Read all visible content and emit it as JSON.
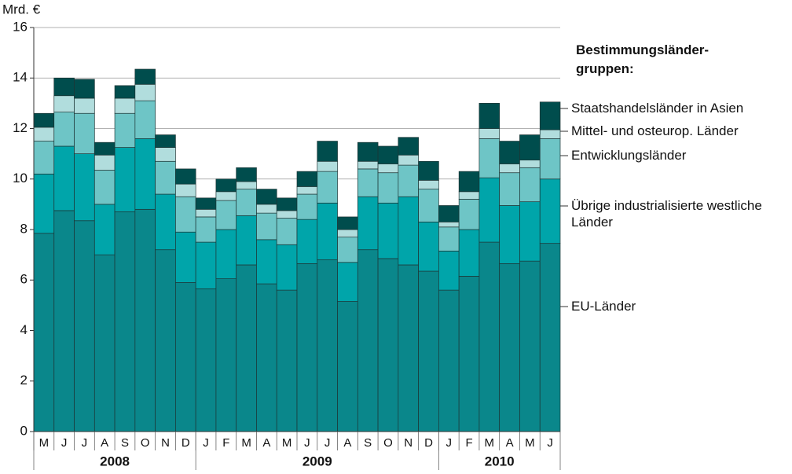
{
  "chart_data": {
    "type": "stacked_bar",
    "y_label": "Mrd. €",
    "legend_title": "Bestimmungsländer-gruppen:",
    "category_groups": [
      {
        "label": "2008",
        "categories": [
          "M",
          "J",
          "J",
          "A",
          "S",
          "O",
          "N",
          "D"
        ]
      },
      {
        "label": "2009",
        "categories": [
          "J",
          "F",
          "M",
          "A",
          "M",
          "J",
          "J",
          "A",
          "S",
          "O",
          "N",
          "D"
        ]
      },
      {
        "label": "2010",
        "categories": [
          "J",
          "F",
          "M",
          "A",
          "M",
          "J"
        ]
      }
    ],
    "series": [
      {
        "name": "EU-Länder",
        "color": "#0a878b",
        "values": [
          7.85,
          8.75,
          8.35,
          7.0,
          8.7,
          8.8,
          7.2,
          5.9,
          5.65,
          6.05,
          6.6,
          5.85,
          5.6,
          6.65,
          6.8,
          5.15,
          7.2,
          6.85,
          6.6,
          6.35,
          5.6,
          6.15,
          7.5,
          6.65,
          6.75,
          7.45
        ]
      },
      {
        "name": "Übrige industrialisierte westliche Länder",
        "color": "#00a5aa",
        "values": [
          2.35,
          2.55,
          2.65,
          2.0,
          2.55,
          2.8,
          2.2,
          2.0,
          1.85,
          1.95,
          1.95,
          1.75,
          1.8,
          1.75,
          2.25,
          1.55,
          2.1,
          2.2,
          2.7,
          1.95,
          1.55,
          1.85,
          2.55,
          2.3,
          2.35,
          2.55
        ]
      },
      {
        "name": "Entwicklungsländer",
        "color": "#6ec5c6",
        "values": [
          1.3,
          1.35,
          1.6,
          1.35,
          1.35,
          1.5,
          1.3,
          1.4,
          1.0,
          1.15,
          1.05,
          1.05,
          1.05,
          1.0,
          1.25,
          1.0,
          1.1,
          1.2,
          1.25,
          1.3,
          0.95,
          1.2,
          1.55,
          1.3,
          1.35,
          1.6
        ]
      },
      {
        "name": "Mittel- und osteurop. Länder",
        "color": "#b1dddd",
        "values": [
          0.55,
          0.65,
          0.6,
          0.6,
          0.6,
          0.65,
          0.55,
          0.5,
          0.3,
          0.35,
          0.3,
          0.35,
          0.3,
          0.3,
          0.4,
          0.3,
          0.3,
          0.35,
          0.4,
          0.35,
          0.2,
          0.3,
          0.4,
          0.35,
          0.3,
          0.35
        ]
      },
      {
        "name": "Staatshandelsländer in Asien",
        "color": "#004d4d",
        "values": [
          0.55,
          0.7,
          0.75,
          0.5,
          0.5,
          0.6,
          0.5,
          0.6,
          0.45,
          0.5,
          0.55,
          0.6,
          0.5,
          0.6,
          0.8,
          0.5,
          0.75,
          0.7,
          0.7,
          0.75,
          0.65,
          0.8,
          1.0,
          0.9,
          1.0,
          1.1
        ]
      }
    ],
    "ylim": [
      0,
      16
    ],
    "yticks": [
      0,
      2,
      4,
      6,
      8,
      10,
      12,
      14,
      16
    ],
    "grid": true
  }
}
